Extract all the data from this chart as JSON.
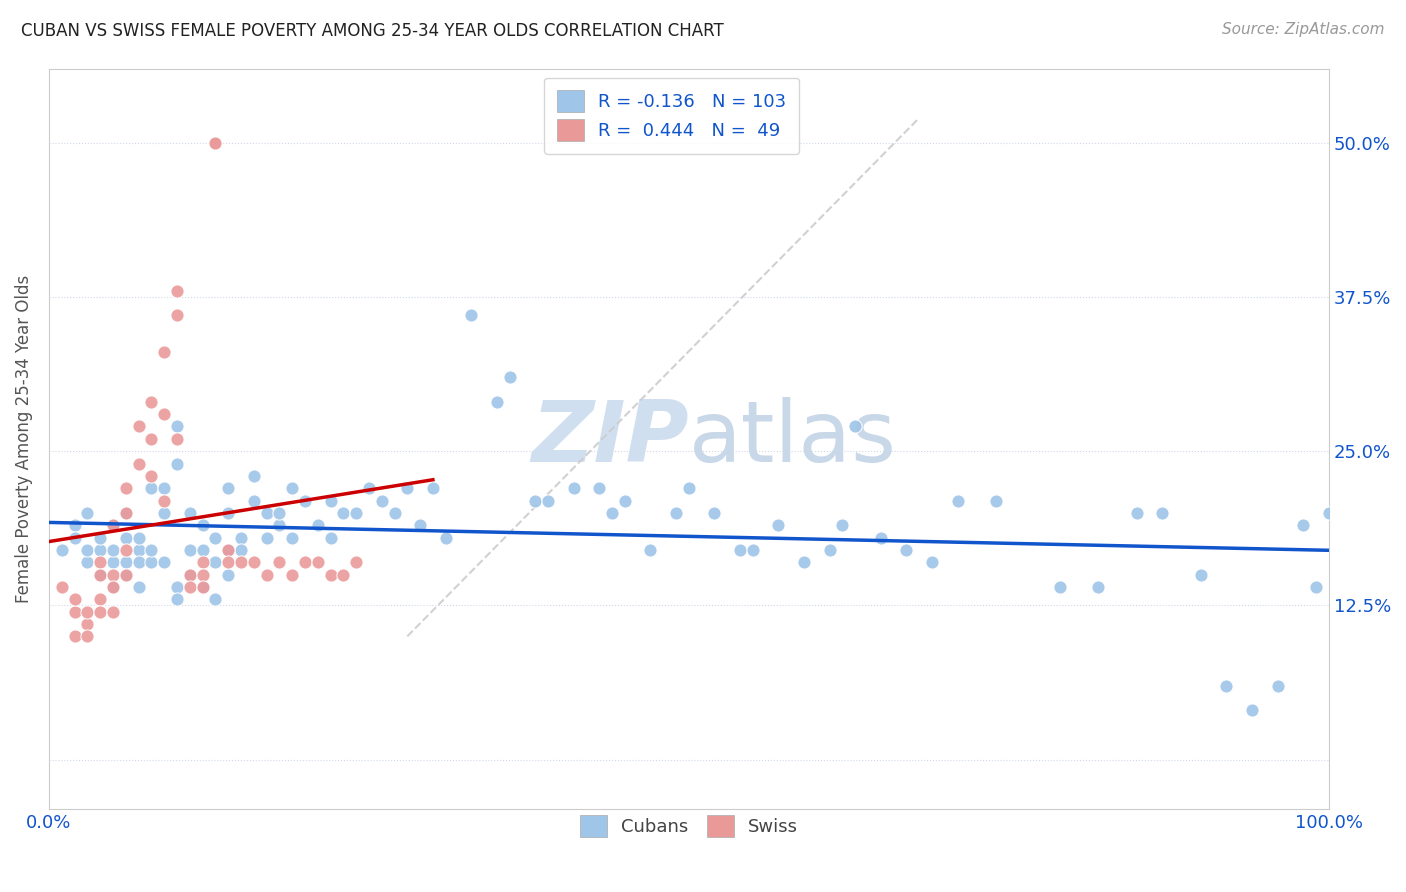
{
  "title": "CUBAN VS SWISS FEMALE POVERTY AMONG 25-34 YEAR OLDS CORRELATION CHART",
  "source": "Source: ZipAtlas.com",
  "ylabel": "Female Poverty Among 25-34 Year Olds",
  "xlim": [
    0.0,
    1.0
  ],
  "ylim": [
    -0.04,
    0.56
  ],
  "yticks": [
    0.0,
    0.125,
    0.25,
    0.375,
    0.5
  ],
  "ytick_labels": [
    "",
    "12.5%",
    "25.0%",
    "37.5%",
    "50.0%"
  ],
  "xticks": [
    0.0,
    0.25,
    0.5,
    0.75,
    1.0
  ],
  "xtick_labels": [
    "0.0%",
    "",
    "",
    "",
    "100.0%"
  ],
  "cubans_R": -0.136,
  "cubans_N": 103,
  "swiss_R": 0.444,
  "swiss_N": 49,
  "blue_color": "#9fc5e8",
  "pink_color": "#ea9999",
  "blue_line_color": "#1155cc",
  "pink_line_color": "#cc0000",
  "diag_color": "#cccccc",
  "watermark_color": "#d0dff0",
  "cubans_x": [
    0.01,
    0.02,
    0.02,
    0.03,
    0.03,
    0.03,
    0.04,
    0.04,
    0.04,
    0.05,
    0.05,
    0.05,
    0.05,
    0.06,
    0.06,
    0.06,
    0.06,
    0.07,
    0.07,
    0.07,
    0.07,
    0.08,
    0.08,
    0.08,
    0.09,
    0.09,
    0.09,
    0.1,
    0.1,
    0.1,
    0.1,
    0.11,
    0.11,
    0.11,
    0.12,
    0.12,
    0.12,
    0.13,
    0.13,
    0.13,
    0.14,
    0.14,
    0.14,
    0.14,
    0.15,
    0.15,
    0.16,
    0.16,
    0.17,
    0.17,
    0.18,
    0.18,
    0.19,
    0.19,
    0.2,
    0.21,
    0.22,
    0.22,
    0.23,
    0.24,
    0.25,
    0.26,
    0.27,
    0.28,
    0.29,
    0.3,
    0.31,
    0.33,
    0.35,
    0.36,
    0.38,
    0.39,
    0.41,
    0.43,
    0.44,
    0.45,
    0.47,
    0.49,
    0.5,
    0.52,
    0.54,
    0.55,
    0.57,
    0.59,
    0.61,
    0.63,
    0.65,
    0.67,
    0.69,
    0.71,
    0.74,
    0.79,
    0.82,
    0.85,
    0.87,
    0.9,
    0.92,
    0.94,
    0.96,
    0.98,
    0.99,
    1.0,
    0.62
  ],
  "cubans_y": [
    0.17,
    0.19,
    0.18,
    0.16,
    0.17,
    0.2,
    0.15,
    0.17,
    0.18,
    0.14,
    0.16,
    0.17,
    0.19,
    0.15,
    0.16,
    0.18,
    0.2,
    0.14,
    0.17,
    0.16,
    0.18,
    0.16,
    0.22,
    0.17,
    0.2,
    0.22,
    0.16,
    0.27,
    0.24,
    0.14,
    0.13,
    0.2,
    0.17,
    0.15,
    0.19,
    0.17,
    0.14,
    0.18,
    0.16,
    0.13,
    0.22,
    0.2,
    0.17,
    0.15,
    0.18,
    0.17,
    0.21,
    0.23,
    0.2,
    0.18,
    0.19,
    0.2,
    0.22,
    0.18,
    0.21,
    0.19,
    0.21,
    0.18,
    0.2,
    0.2,
    0.22,
    0.21,
    0.2,
    0.22,
    0.19,
    0.22,
    0.18,
    0.36,
    0.29,
    0.31,
    0.21,
    0.21,
    0.22,
    0.22,
    0.2,
    0.21,
    0.17,
    0.2,
    0.22,
    0.2,
    0.17,
    0.17,
    0.19,
    0.16,
    0.17,
    0.27,
    0.18,
    0.17,
    0.16,
    0.21,
    0.21,
    0.14,
    0.14,
    0.2,
    0.2,
    0.15,
    0.06,
    0.04,
    0.06,
    0.19,
    0.14,
    0.2,
    0.19
  ],
  "swiss_x": [
    0.01,
    0.02,
    0.02,
    0.02,
    0.03,
    0.03,
    0.03,
    0.04,
    0.04,
    0.04,
    0.04,
    0.05,
    0.05,
    0.05,
    0.05,
    0.06,
    0.06,
    0.06,
    0.06,
    0.07,
    0.07,
    0.08,
    0.08,
    0.08,
    0.09,
    0.09,
    0.09,
    0.1,
    0.1,
    0.1,
    0.11,
    0.11,
    0.12,
    0.12,
    0.12,
    0.13,
    0.13,
    0.14,
    0.14,
    0.15,
    0.16,
    0.17,
    0.18,
    0.19,
    0.2,
    0.21,
    0.22,
    0.23,
    0.24
  ],
  "swiss_y": [
    0.14,
    0.12,
    0.13,
    0.1,
    0.11,
    0.12,
    0.1,
    0.16,
    0.15,
    0.13,
    0.12,
    0.19,
    0.15,
    0.14,
    0.12,
    0.22,
    0.2,
    0.17,
    0.15,
    0.27,
    0.24,
    0.29,
    0.26,
    0.23,
    0.33,
    0.28,
    0.21,
    0.38,
    0.36,
    0.26,
    0.15,
    0.14,
    0.16,
    0.15,
    0.14,
    0.5,
    0.5,
    0.17,
    0.16,
    0.16,
    0.16,
    0.15,
    0.16,
    0.15,
    0.16,
    0.16,
    0.15,
    0.15,
    0.16
  ]
}
